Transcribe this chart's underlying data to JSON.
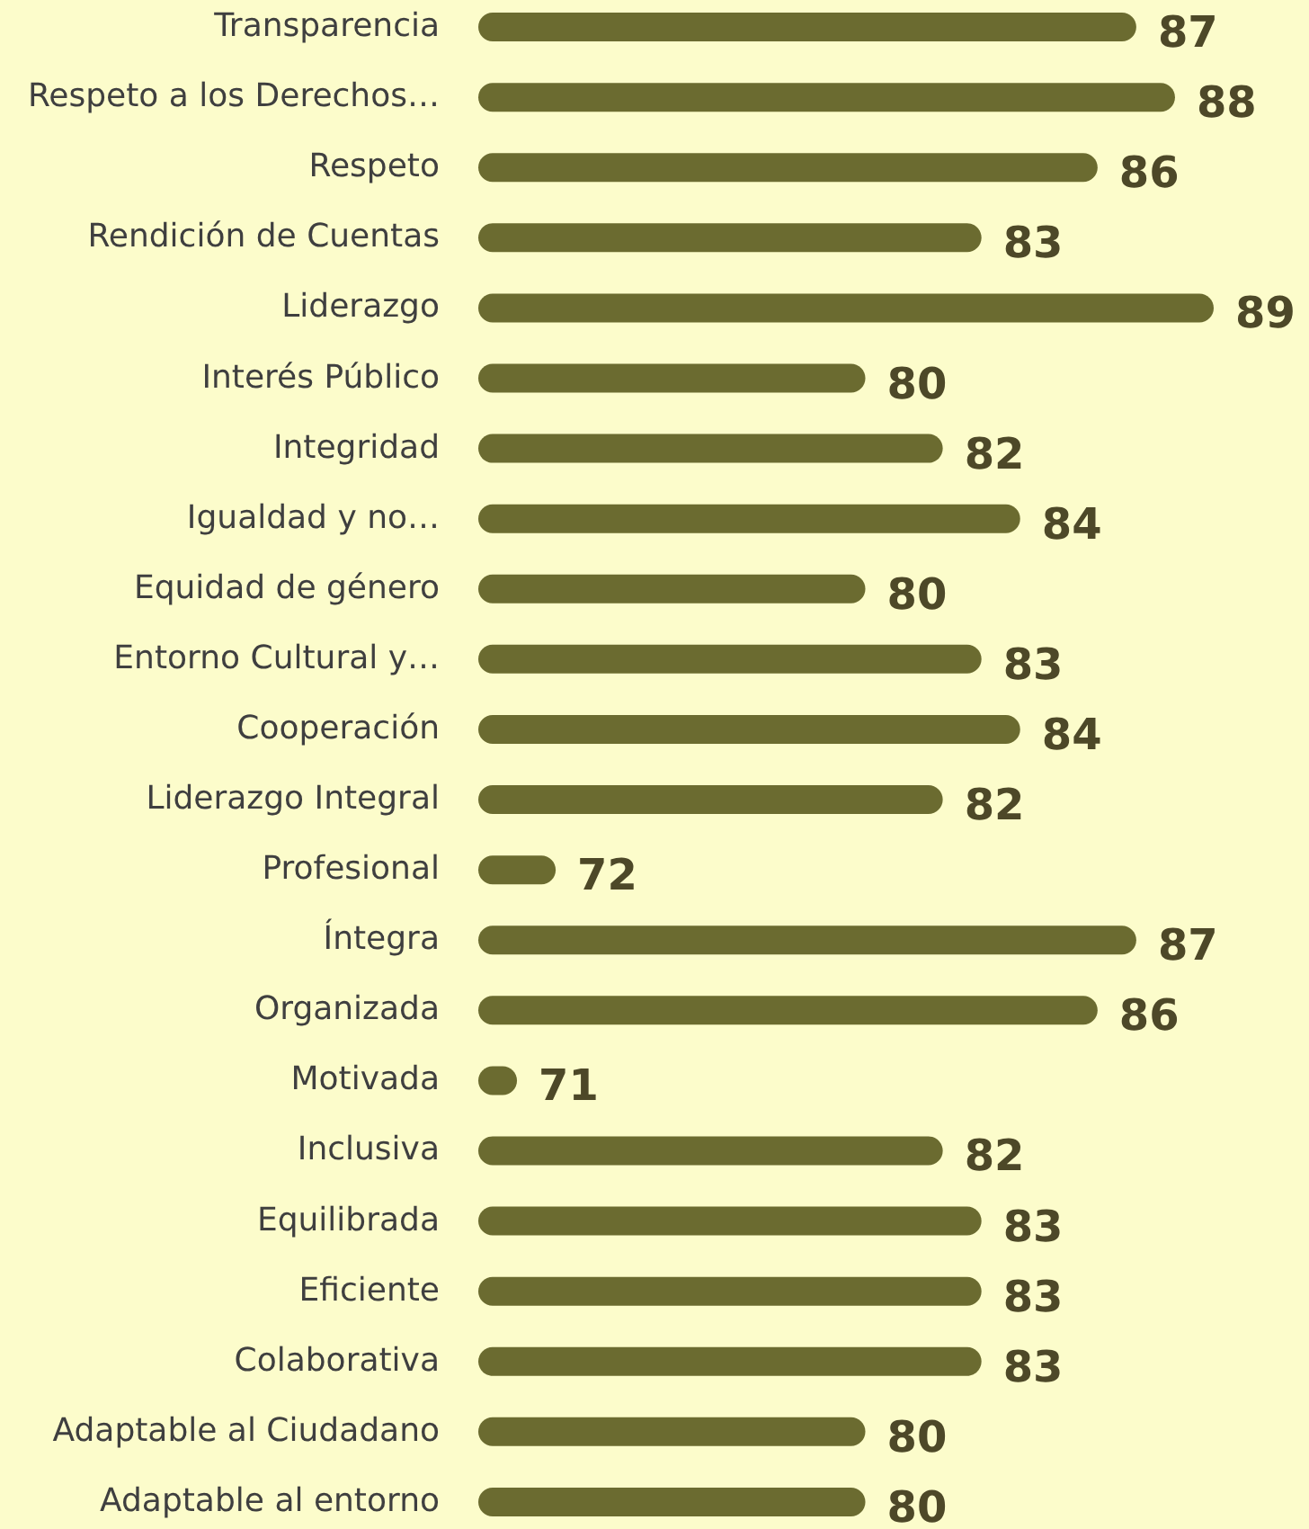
{
  "chart_data": {
    "type": "bar",
    "orientation": "horizontal",
    "categories": [
      "Transparencia",
      "Respeto a los Derechos…",
      "Respeto",
      "Rendición de Cuentas",
      "Liderazgo",
      "Interés Público",
      "Integridad",
      "Igualdad y no…",
      "Equidad de género",
      "Entorno Cultural y…",
      "Cooperación",
      "Liderazgo Integral",
      "Profesional",
      "Íntegra",
      "Organizada",
      "Motivada",
      "Inclusiva",
      "Equilibrada",
      "Eficiente",
      "Colaborativa",
      "Adaptable al Ciudadano",
      "Adaptable al entorno"
    ],
    "values": [
      87,
      88,
      86,
      83,
      89,
      80,
      82,
      84,
      80,
      83,
      84,
      82,
      72,
      87,
      86,
      71,
      82,
      83,
      83,
      83,
      80,
      80
    ],
    "color": "#6b6b30",
    "xlim": [
      70,
      89
    ],
    "data_labels": true,
    "tick_labels": "y"
  }
}
